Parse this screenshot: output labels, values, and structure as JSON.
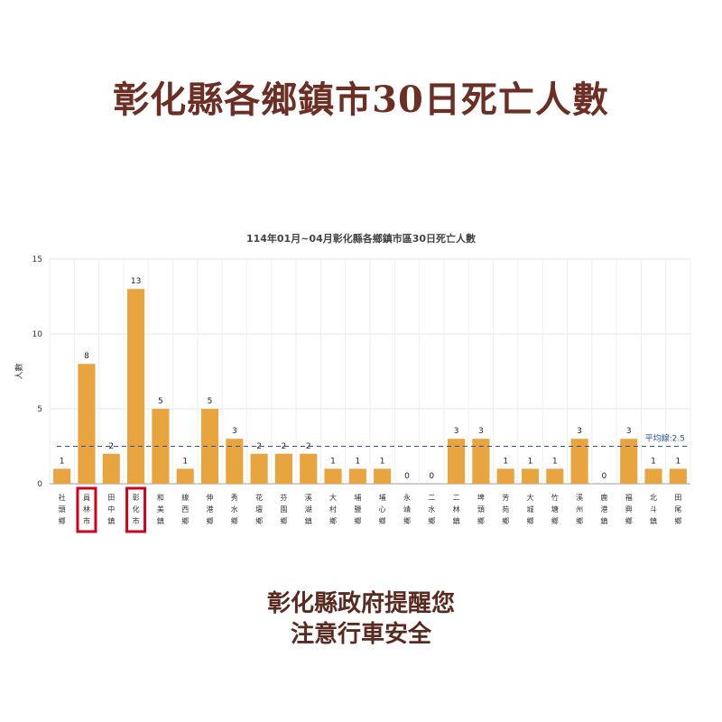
{
  "headline": "彰化縣各鄉鎮市30日死亡人數",
  "footer": {
    "line1": "彰化縣政府提醒您",
    "line2": "注意行車安全"
  },
  "colors": {
    "bar": "#e8a43e",
    "average_line": "#2a4fa8",
    "highlight": "#d0021b",
    "headline": "#6b2f24"
  },
  "chart_data": {
    "type": "bar",
    "title": "114年01月~04月彰化縣各鄉鎮市區30日死亡人數",
    "xlabel": "",
    "ylabel": "人數",
    "ylim": [
      0,
      15
    ],
    "yticks": [
      0,
      5,
      10,
      15
    ],
    "grid": true,
    "categories": [
      "社頭鄉",
      "員林市",
      "田中鎮",
      "彰化市",
      "和美鎮",
      "線西鄉",
      "伸港鄉",
      "秀水鄉",
      "花壇鄉",
      "芬園鄉",
      "溪湖鎮",
      "大村鄉",
      "埔鹽鄉",
      "埔心鄉",
      "永靖鄉",
      "二水鄉",
      "二林鎮",
      "埤頭鄉",
      "芳苑鄉",
      "大城鄉",
      "竹塘鄉",
      "溪州鄉",
      "鹿港鎮",
      "福興鄉",
      "北斗鎮",
      "田尾鄉"
    ],
    "values": [
      1,
      8,
      2,
      13,
      5,
      1,
      5,
      3,
      2,
      2,
      2,
      1,
      1,
      1,
      0,
      0,
      3,
      3,
      1,
      1,
      1,
      3,
      0,
      3,
      1,
      1
    ],
    "highlighted": [
      "員林市",
      "彰化市"
    ],
    "reference_line": {
      "label": "平均線:2.5",
      "value": 2.5,
      "style": "dashed"
    }
  }
}
